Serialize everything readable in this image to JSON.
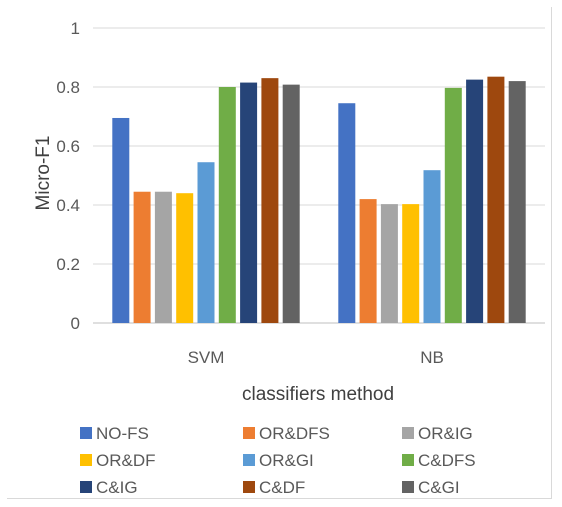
{
  "chart_data": {
    "type": "bar",
    "categories": [
      "SVM",
      "NB"
    ],
    "xlabel": "classifiers method",
    "ylabel": "Micro-F1",
    "ylim": [
      0,
      1
    ],
    "yticks": [
      "0",
      "0.2",
      "0.4",
      "0.6",
      "0.8",
      "1"
    ],
    "grid": true,
    "legend_position": "bottom",
    "series": [
      {
        "name": "NO-FS",
        "color": "#4472c4",
        "values": [
          0.695,
          0.745
        ]
      },
      {
        "name": "OR&DFS",
        "color": "#ed7d31",
        "values": [
          0.445,
          0.42
        ]
      },
      {
        "name": "OR&IG",
        "color": "#a5a5a5",
        "values": [
          0.445,
          0.403
        ]
      },
      {
        "name": "OR&DF",
        "color": "#ffc000",
        "values": [
          0.44,
          0.403
        ]
      },
      {
        "name": "OR&GI",
        "color": "#5b9bd5",
        "values": [
          0.545,
          0.518
        ]
      },
      {
        "name": "C&DFS",
        "color": "#70ad47",
        "values": [
          0.8,
          0.797
        ]
      },
      {
        "name": "C&IG",
        "color": "#264478",
        "values": [
          0.815,
          0.825
        ]
      },
      {
        "name": "C&DF",
        "color": "#9e480e",
        "values": [
          0.83,
          0.835
        ]
      },
      {
        "name": "C&GI",
        "color": "#636363",
        "values": [
          0.808,
          0.82
        ]
      }
    ]
  }
}
